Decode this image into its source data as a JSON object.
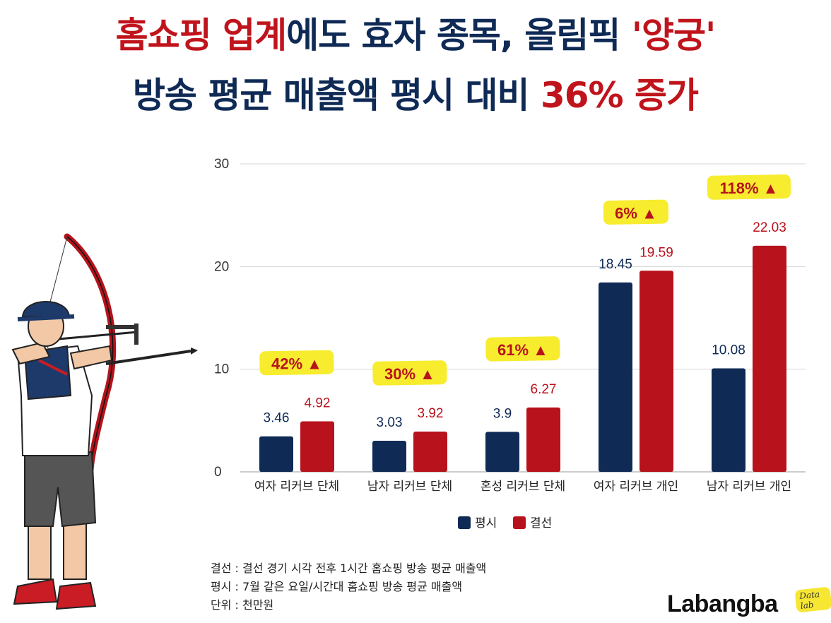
{
  "title": {
    "line1": [
      {
        "text": "홈쇼핑 업계",
        "color": "red"
      },
      {
        "text": "에도 효자 종목, 올림픽 ",
        "color": "navy"
      },
      {
        "text": "'양궁'",
        "color": "red"
      }
    ],
    "line2": [
      {
        "text": "방송 평균 매출액 평시 대비 ",
        "color": "navy"
      },
      {
        "text": "36% 증가",
        "color": "red"
      }
    ]
  },
  "colors": {
    "navy": "#0f2a55",
    "red": "#b8121c",
    "highlight": "#f7ec2e",
    "grid": "#d4d4d4"
  },
  "chart_data": {
    "type": "bar",
    "categories": [
      "여자 리커브 단체",
      "남자 리커브 단체",
      "혼성 리커브 단체",
      "여자 리커브 개인",
      "남자 리커브 개인"
    ],
    "series": [
      {
        "name": "평시",
        "values": [
          3.46,
          3.03,
          3.9,
          18.45,
          10.08
        ],
        "labels": [
          "3.46",
          "3.03",
          "3.9",
          "18.45",
          "10.08"
        ],
        "color": "#0f2a55"
      },
      {
        "name": "결선",
        "values": [
          4.92,
          3.92,
          6.27,
          19.59,
          22.03
        ],
        "labels": [
          "4.92",
          "3.92",
          "6.27",
          "19.59",
          "22.03"
        ],
        "color": "#b8121c"
      }
    ],
    "increase_labels": [
      "42% ▲",
      "30% ▲",
      "61% ▲",
      "6% ▲",
      "118% ▲"
    ],
    "yticks": [
      "0",
      "10",
      "20",
      "30"
    ],
    "ylim": [
      0,
      30
    ],
    "grid": true,
    "legend_position": "bottom-center"
  },
  "notes": [
    "결선 : 결선 경기 시각 전후 1시간 홈쇼핑 방송 평균 매출액",
    "평시 : 7월 같은 요일/시간대 홈쇼핑 방송 평균 매출액",
    "단위 : 천만원"
  ],
  "brand": {
    "name": "Labangba",
    "tag": "Data lab"
  },
  "illustration": {
    "icon": "archer-illustration"
  }
}
